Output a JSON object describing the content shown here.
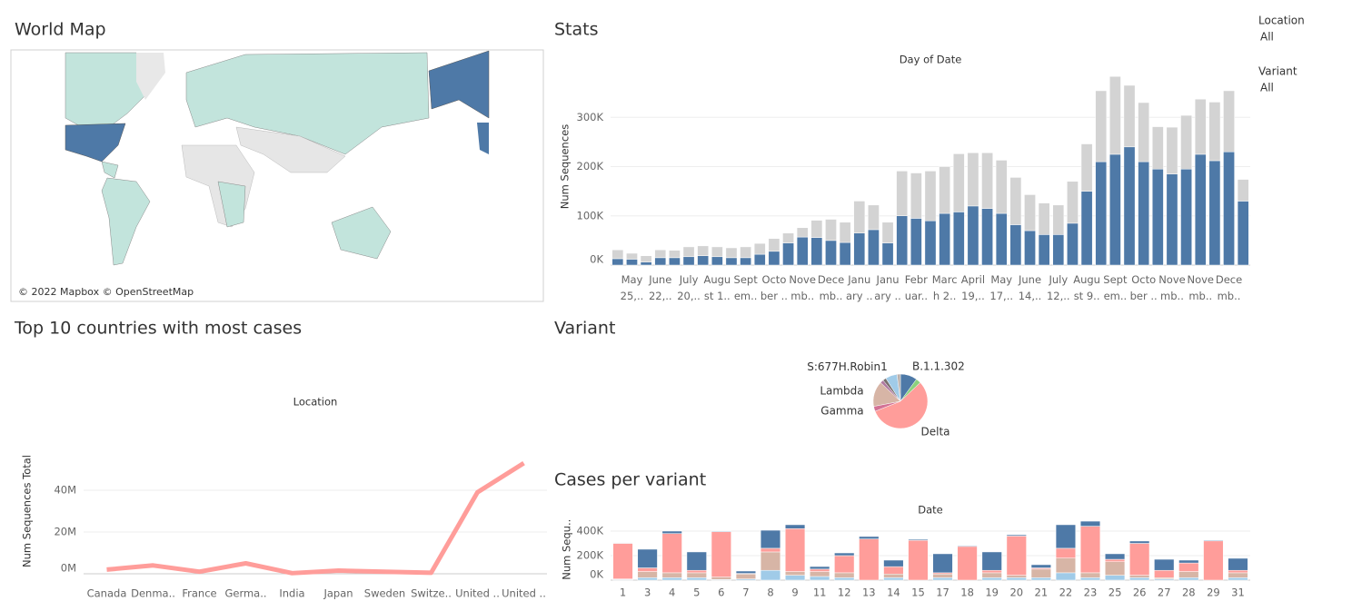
{
  "dashboard": {
    "sections": [
      "World Map",
      "Stats",
      "Top 10 countries with most cases",
      "Variant",
      "Cases per variant"
    ],
    "filters": [
      {
        "label": "Location",
        "value": "All"
      },
      {
        "label": "Variant",
        "value": "All"
      }
    ],
    "map_credit": "© 2022 Mapbox © OpenStreetMap"
  },
  "chart_data": [
    {
      "type": "bar",
      "title": "Day of Date",
      "y_label": "Num Sequences",
      "stacked": true,
      "grid": true,
      "categories": [
        null,
        "May\n25,..",
        null,
        "June\n22,..",
        null,
        "July\n20,..",
        null,
        "Augu\nst 1..",
        null,
        "Sept\nem..",
        null,
        "Octo\nber ..",
        null,
        "Nove\nmb..",
        null,
        "Dece\nmb..",
        null,
        "Janu\nary ..",
        null,
        "Janu\nary ..",
        null,
        "Febr\nuar..",
        null,
        "Marc\nh 2..",
        null,
        "April\n19,..",
        null,
        "May\n17,..",
        null,
        "June\n14,..",
        null,
        "July\n12,..",
        null,
        "Augu\nst 9..",
        null,
        "Sept\nem..",
        null,
        "Octo\nber ..",
        null,
        "Nove\nmb..",
        null,
        "Nove\nmb..",
        null,
        "Dece\nmb..",
        null
      ],
      "series": [
        {
          "color": "#4e79a7",
          "values": [
            13000,
            12000,
            6000,
            15000,
            15000,
            17000,
            19000,
            17000,
            15000,
            15000,
            22000,
            28000,
            45000,
            57000,
            56000,
            50000,
            46000,
            65000,
            72000,
            45000,
            100000,
            95000,
            90000,
            105000,
            108000,
            120000,
            115000,
            105000,
            82000,
            70000,
            62000,
            62000,
            85000,
            150000,
            210000,
            225000,
            240000,
            210000,
            195000,
            185000,
            195000,
            225000,
            212000,
            230000,
            130000
          ]
        },
        {
          "color": "#d3d3d3",
          "values": [
            18000,
            12000,
            13000,
            16000,
            15000,
            20000,
            20000,
            20000,
            20000,
            22000,
            22000,
            26000,
            20000,
            19000,
            35000,
            43000,
            41000,
            65000,
            50000,
            42000,
            91000,
            92000,
            101000,
            95000,
            118000,
            108000,
            113000,
            108000,
            96000,
            73000,
            64000,
            60000,
            85000,
            96000,
            144000,
            158000,
            125000,
            120000,
            86000,
            95000,
            109000,
            112000,
            119000,
            124000,
            44000
          ]
        }
      ],
      "ylim": [
        0,
        400000
      ],
      "yticks": [
        {
          "value": 0,
          "label": "0K"
        },
        {
          "value": 100000,
          "label": "100K"
        },
        {
          "value": 200000,
          "label": "200K"
        },
        {
          "value": 300000,
          "label": "300K"
        }
      ]
    },
    {
      "type": "line",
      "title": "Location",
      "y_label": "Num Sequences Total",
      "color": "#ff9d9a",
      "grid": true,
      "categories": [
        "Canada",
        "Denma..",
        "France",
        "Germa..",
        "India",
        "Japan",
        "Sweden",
        "Switze..",
        "United ..",
        "United .."
      ],
      "values": [
        2000000,
        4000000,
        1000000,
        5000000,
        300000,
        1500000,
        1000000,
        500000,
        39000000,
        53000000
      ],
      "ylim": [
        0,
        60000000
      ],
      "yticks": [
        {
          "value": 0,
          "label": "0M"
        },
        {
          "value": 20000000,
          "label": "20M"
        },
        {
          "value": 40000000,
          "label": "40M"
        }
      ]
    },
    {
      "type": "pie",
      "categories": [
        "B.1.1.302",
        null,
        "Delta",
        "Gamma",
        "Lambda",
        null,
        null,
        "S:677H.Robin1",
        null
      ],
      "values": [
        10,
        3,
        56,
        3,
        15,
        2,
        2,
        7,
        2
      ],
      "colors": [
        "#4e79a7",
        "#8cd17d",
        "#ff9d9a",
        "#d37295",
        "#d7b5a6",
        "#b07aa1",
        "#79706e",
        "#a0cbe8",
        "#bab0ac"
      ]
    },
    {
      "type": "bar",
      "title": "Date",
      "y_label": "Num Sequ..",
      "stacked": true,
      "grid": true,
      "categories": [
        "1",
        "3",
        "4",
        "5",
        "6",
        "7",
        "8",
        "9",
        "11",
        "12",
        "13",
        "14",
        "15",
        "17",
        "18",
        "19",
        "20",
        "21",
        "22",
        "23",
        "25",
        "26",
        "27",
        "28",
        "29",
        "31"
      ],
      "series": [
        {
          "color": "#a0cbe8",
          "values": [
            5000,
            20000,
            20000,
            20000,
            5000,
            10000,
            80000,
            40000,
            30000,
            20000,
            0,
            20000,
            0,
            20000,
            0,
            20000,
            20000,
            20000,
            60000,
            20000,
            40000,
            20000,
            10000,
            20000,
            0,
            20000
          ]
        },
        {
          "color": "#d7b5a6",
          "values": [
            5000,
            50000,
            40000,
            40000,
            20000,
            40000,
            150000,
            30000,
            40000,
            40000,
            0,
            30000,
            0,
            30000,
            0,
            40000,
            20000,
            70000,
            120000,
            40000,
            110000,
            20000,
            10000,
            50000,
            0,
            40000
          ]
        },
        {
          "color": "#ff9d9a",
          "values": [
            290000,
            30000,
            320000,
            20000,
            370000,
            5000,
            30000,
            350000,
            20000,
            140000,
            336000,
            60000,
            325000,
            10000,
            275000,
            20000,
            320000,
            10000,
            80000,
            380000,
            20000,
            260000,
            60000,
            70000,
            320000,
            20000
          ]
        },
        {
          "color": "#4e79a7",
          "values": [
            4000,
            152000,
            20000,
            150000,
            5000,
            19000,
            147000,
            32000,
            21000,
            22000,
            20000,
            53000,
            8000,
            155000,
            6000,
            150000,
            10000,
            26000,
            192000,
            41000,
            45000,
            19000,
            90000,
            23000,
            6000,
            98000
          ]
        }
      ],
      "ylim": [
        0,
        500000
      ],
      "yticks": [
        {
          "value": 0,
          "label": "0K"
        },
        {
          "value": 200000,
          "label": "200K"
        },
        {
          "value": 400000,
          "label": "400K"
        }
      ]
    }
  ]
}
